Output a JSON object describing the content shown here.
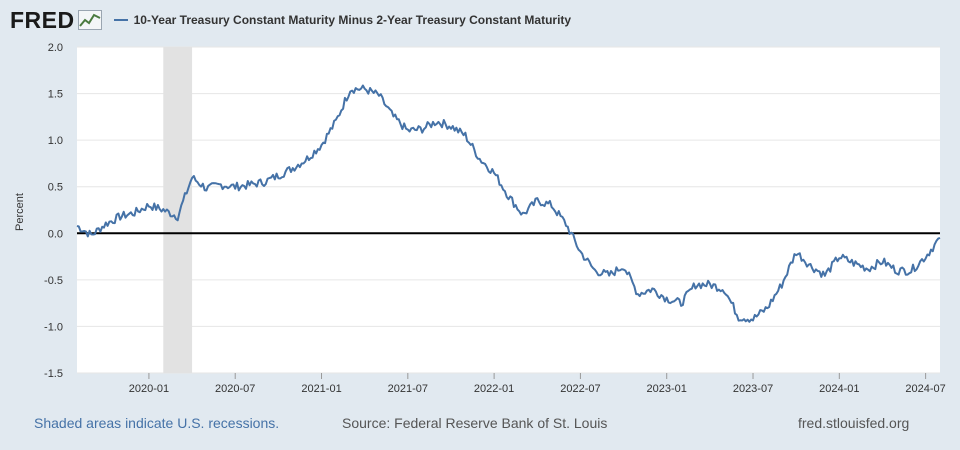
{
  "header": {
    "logo": "FRED",
    "series_label": "10-Year Treasury Constant Maturity Minus 2-Year Treasury Constant Maturity"
  },
  "colors": {
    "line": "#4572a7",
    "recession": "#e2e2e2",
    "background": "#e1e9f0",
    "plot": "#ffffff",
    "zero_line": "#000000"
  },
  "chart_data": {
    "type": "line",
    "title": "10-Year Treasury Constant Maturity Minus 2-Year Treasury Constant Maturity",
    "xlabel": "",
    "ylabel": "Percent",
    "ylim": [
      -1.5,
      2.0
    ],
    "y_ticks": [
      "2.0",
      "1.5",
      "1.0",
      "0.5",
      "0.0",
      "-0.5",
      "-1.0",
      "-1.5"
    ],
    "y_tick_values": [
      2.0,
      1.5,
      1.0,
      0.5,
      0.0,
      -0.5,
      -1.0,
      -1.5
    ],
    "xlim": [
      "2019-08-01",
      "2024-08-01"
    ],
    "x_ticks": [
      "2020-01",
      "2020-07",
      "2021-01",
      "2021-07",
      "2022-01",
      "2022-07",
      "2023-01",
      "2023-07",
      "2024-01",
      "2024-07"
    ],
    "grid": "horizontal",
    "recessions": [
      {
        "start": "2020-02",
        "end": "2020-04"
      }
    ],
    "series": [
      {
        "name": "10-Year Treasury Constant Maturity Minus 2-Year Treasury Constant Maturity",
        "x": [
          "2019-08",
          "2019-09",
          "2019-10",
          "2019-11",
          "2019-12",
          "2020-01",
          "2020-02",
          "2020-03",
          "2020-04",
          "2020-05",
          "2020-06",
          "2020-07",
          "2020-08",
          "2020-09",
          "2020-10",
          "2020-11",
          "2020-12",
          "2021-01",
          "2021-02",
          "2021-03",
          "2021-04",
          "2021-05",
          "2021-06",
          "2021-07",
          "2021-08",
          "2021-09",
          "2021-10",
          "2021-11",
          "2021-12",
          "2022-01",
          "2022-02",
          "2022-03",
          "2022-04",
          "2022-05",
          "2022-06",
          "2022-07",
          "2022-08",
          "2022-09",
          "2022-10",
          "2022-11",
          "2022-12",
          "2023-01",
          "2023-02",
          "2023-03",
          "2023-04",
          "2023-05",
          "2023-06",
          "2023-07",
          "2023-08",
          "2023-09",
          "2023-10",
          "2023-11",
          "2023-12",
          "2024-01",
          "2024-02",
          "2024-03",
          "2024-04",
          "2024-05",
          "2024-06",
          "2024-07",
          "2024-08"
        ],
        "values": [
          0.08,
          -0.02,
          0.1,
          0.18,
          0.22,
          0.3,
          0.25,
          0.18,
          0.6,
          0.48,
          0.52,
          0.5,
          0.52,
          0.55,
          0.62,
          0.7,
          0.8,
          0.95,
          1.2,
          1.55,
          1.55,
          1.48,
          1.25,
          1.1,
          1.12,
          1.2,
          1.15,
          1.05,
          0.8,
          0.65,
          0.4,
          0.2,
          0.35,
          0.3,
          0.1,
          -0.2,
          -0.4,
          -0.45,
          -0.35,
          -0.65,
          -0.6,
          -0.7,
          -0.75,
          -0.55,
          -0.55,
          -0.6,
          -0.9,
          -0.92,
          -0.8,
          -0.55,
          -0.2,
          -0.35,
          -0.45,
          -0.25,
          -0.32,
          -0.38,
          -0.3,
          -0.4,
          -0.4,
          -0.25,
          -0.05
        ]
      }
    ]
  },
  "footer": {
    "recession_note": "Shaded areas indicate U.S. recessions.",
    "source": "Source: Federal Reserve Bank of St. Louis",
    "site": "fred.stlouisfed.org"
  }
}
